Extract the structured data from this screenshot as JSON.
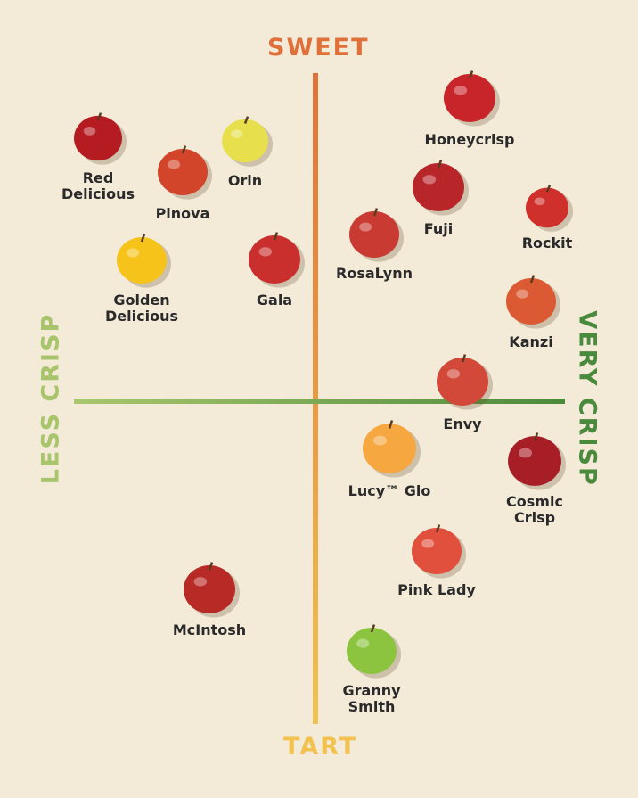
{
  "axes": {
    "top": "SWEET",
    "bottom": "TART",
    "left": "LESS CRISP",
    "right": "VERY CRISP"
  },
  "nodes": [
    {
      "label": "Honeycrisp"
    },
    {
      "label": "Red Delicious"
    },
    {
      "label": "Orin"
    },
    {
      "label": "Pinova"
    },
    {
      "label": "Fuji"
    },
    {
      "label": "Rockit"
    },
    {
      "label": "RosaLynn"
    },
    {
      "label": "Golden Delicious"
    },
    {
      "label": "Gala"
    },
    {
      "label": "Kanzi"
    },
    {
      "label": "Envy"
    },
    {
      "label": "Lucy™ Glo"
    },
    {
      "label": "Cosmic Crisp"
    },
    {
      "label": "Pink Lady"
    },
    {
      "label": "McIntosh"
    },
    {
      "label": "Granny Smith"
    }
  ]
}
